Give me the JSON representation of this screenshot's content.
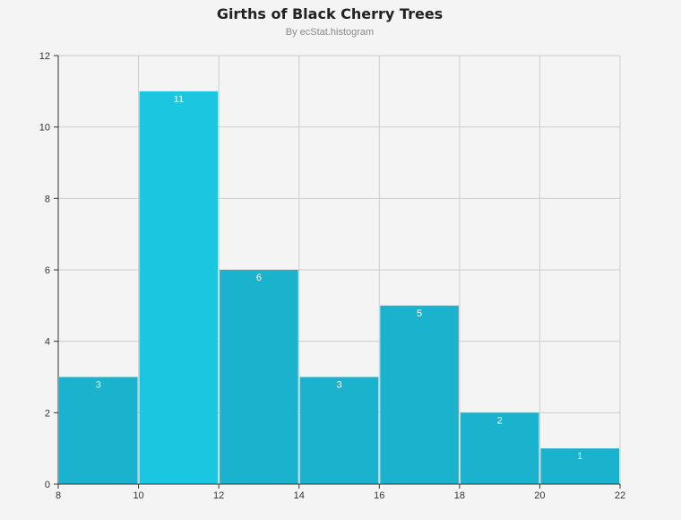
{
  "chart_data": {
    "type": "bar",
    "title": "Girths of Black Cherry Trees",
    "subtitle": "By ecStat.histogram",
    "xlabel": "",
    "ylabel": "",
    "bins": [
      {
        "x0": 8,
        "x1": 10,
        "value": 3
      },
      {
        "x0": 10,
        "x1": 12,
        "value": 11
      },
      {
        "x0": 12,
        "x1": 14,
        "value": 6
      },
      {
        "x0": 14,
        "x1": 16,
        "value": 3
      },
      {
        "x0": 16,
        "x1": 18,
        "value": 5
      },
      {
        "x0": 18,
        "x1": 20,
        "value": 2
      },
      {
        "x0": 20,
        "x1": 22,
        "value": 1
      }
    ],
    "xlim": [
      8,
      22
    ],
    "ylim": [
      0,
      12
    ],
    "x_ticks": [
      "8",
      "10",
      "12",
      "14",
      "16",
      "18",
      "20",
      "22"
    ],
    "y_ticks": [
      "0",
      "2",
      "4",
      "6",
      "8",
      "10",
      "12"
    ],
    "grid": true,
    "colors": {
      "bar": "#1ab2cc",
      "bar_highlight": "#1bc6e0",
      "grid": "#cccccc",
      "axis": "#333333",
      "label": "#ffffff"
    }
  }
}
